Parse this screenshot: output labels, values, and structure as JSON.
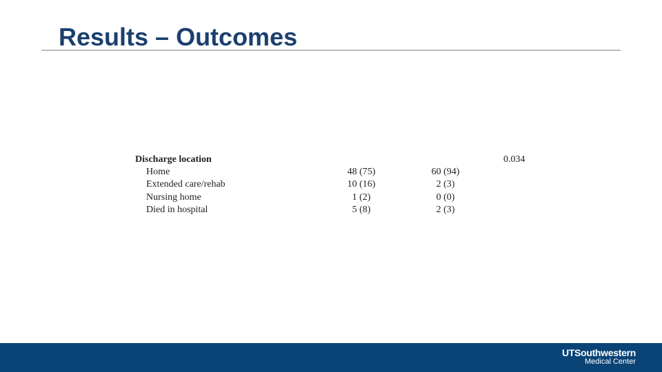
{
  "slide": {
    "title": "Results – Outcomes"
  },
  "table": {
    "header": "Discharge location",
    "p_value": "0.034",
    "rows": [
      {
        "label": "Home",
        "col1": "48 (75)",
        "col2": "60 (94)"
      },
      {
        "label": "Extended care/rehab",
        "col1": "10 (16)",
        "col2": "2 (3)"
      },
      {
        "label": "Nursing home",
        "col1": "1 (2)",
        "col2": "0 (0)"
      },
      {
        "label": "Died in hospital",
        "col1": "5 (8)",
        "col2": "2 (3)"
      }
    ]
  },
  "footer": {
    "logo_line1": "UTSouthwestern",
    "logo_line2": "Medical Center",
    "bar_color": "#0a4477"
  },
  "colors": {
    "title": "#1c3f6e",
    "rule": "#b8bcc2"
  }
}
